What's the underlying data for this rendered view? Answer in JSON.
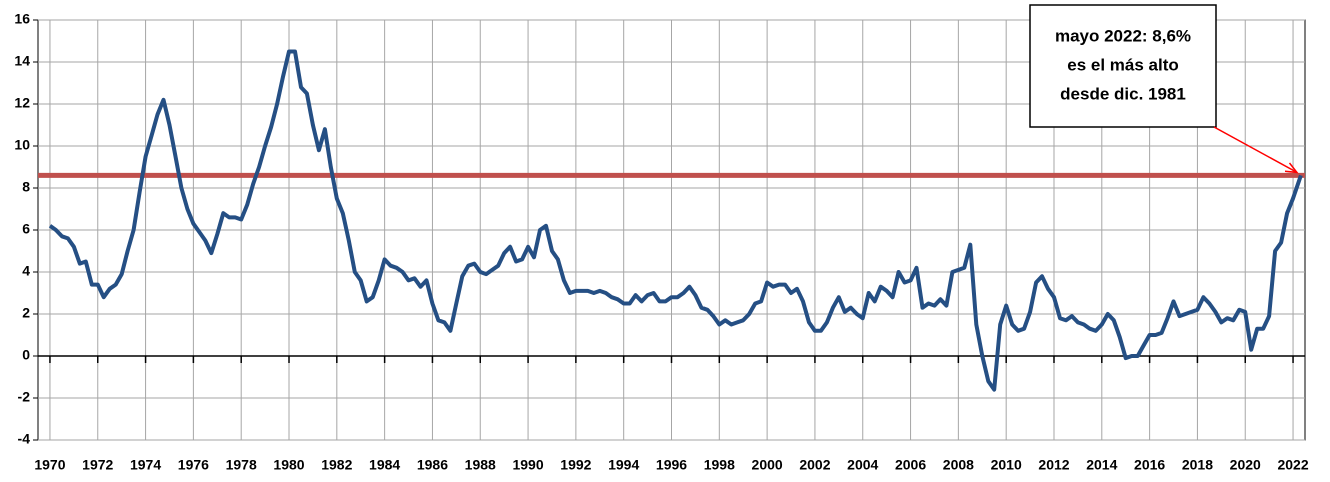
{
  "chart_data": {
    "type": "line",
    "series": [
      {
        "color": "#254f84",
        "x": [
          1970,
          1970.25,
          1970.5,
          1970.75,
          1971,
          1971.25,
          1971.5,
          1971.75,
          1972,
          1972.25,
          1972.5,
          1972.75,
          1973,
          1973.25,
          1973.5,
          1973.75,
          1974,
          1974.25,
          1974.5,
          1974.75,
          1975,
          1975.25,
          1975.5,
          1975.75,
          1976,
          1976.25,
          1976.5,
          1976.75,
          1977,
          1977.25,
          1977.5,
          1977.75,
          1978,
          1978.25,
          1978.5,
          1978.75,
          1979,
          1979.25,
          1979.5,
          1979.75,
          1980,
          1980.25,
          1980.5,
          1980.75,
          1981,
          1981.25,
          1981.5,
          1981.75,
          1982,
          1982.25,
          1982.5,
          1982.75,
          1983,
          1983.25,
          1983.5,
          1983.75,
          1984,
          1984.25,
          1984.5,
          1984.75,
          1985,
          1985.25,
          1985.5,
          1985.75,
          1986,
          1986.25,
          1986.5,
          1986.75,
          1987,
          1987.25,
          1987.5,
          1987.75,
          1988,
          1988.25,
          1988.5,
          1988.75,
          1989,
          1989.25,
          1989.5,
          1989.75,
          1990,
          1990.25,
          1990.5,
          1990.75,
          1991,
          1991.25,
          1991.5,
          1991.75,
          1992,
          1992.25,
          1992.5,
          1992.75,
          1993,
          1993.25,
          1993.5,
          1993.75,
          1994,
          1994.25,
          1994.5,
          1994.75,
          1995,
          1995.25,
          1995.5,
          1995.75,
          1996,
          1996.25,
          1996.5,
          1996.75,
          1997,
          1997.25,
          1997.5,
          1997.75,
          1998,
          1998.25,
          1998.5,
          1998.75,
          1999,
          1999.25,
          1999.5,
          1999.75,
          2000,
          2000.25,
          2000.5,
          2000.75,
          2001,
          2001.25,
          2001.5,
          2001.75,
          2002,
          2002.25,
          2002.5,
          2002.75,
          2003,
          2003.25,
          2003.5,
          2003.75,
          2004,
          2004.25,
          2004.5,
          2004.75,
          2005,
          2005.25,
          2005.5,
          2005.75,
          2006,
          2006.25,
          2006.5,
          2006.75,
          2007,
          2007.25,
          2007.5,
          2007.75,
          2008,
          2008.25,
          2008.5,
          2008.75,
          2009,
          2009.25,
          2009.5,
          2009.75,
          2010,
          2010.25,
          2010.5,
          2010.75,
          2011,
          2011.25,
          2011.5,
          2011.75,
          2012,
          2012.25,
          2012.5,
          2012.75,
          2013,
          2013.25,
          2013.5,
          2013.75,
          2014,
          2014.25,
          2014.5,
          2014.75,
          2015,
          2015.25,
          2015.5,
          2015.75,
          2016,
          2016.25,
          2016.5,
          2016.75,
          2017,
          2017.25,
          2017.5,
          2017.75,
          2018,
          2018.25,
          2018.5,
          2018.75,
          2019,
          2019.25,
          2019.5,
          2019.75,
          2020,
          2020.25,
          2020.5,
          2020.75,
          2021,
          2021.25,
          2021.5,
          2021.75,
          2022,
          2022.33
        ],
        "values": [
          6.2,
          6.0,
          5.7,
          5.6,
          5.2,
          4.4,
          4.5,
          3.4,
          3.4,
          2.8,
          3.2,
          3.4,
          3.9,
          5.0,
          6.0,
          7.8,
          9.5,
          10.5,
          11.5,
          12.2,
          11.0,
          9.5,
          8.0,
          7.0,
          6.3,
          5.9,
          5.5,
          4.9,
          5.8,
          6.8,
          6.6,
          6.6,
          6.5,
          7.2,
          8.2,
          9.0,
          10.0,
          10.9,
          12.0,
          13.3,
          14.5,
          14.5,
          12.8,
          12.5,
          11.0,
          9.8,
          10.8,
          9.0,
          7.5,
          6.8,
          5.5,
          4.0,
          3.6,
          2.6,
          2.8,
          3.6,
          4.6,
          4.3,
          4.2,
          4.0,
          3.6,
          3.7,
          3.3,
          3.6,
          2.5,
          1.7,
          1.6,
          1.2,
          2.5,
          3.8,
          4.3,
          4.4,
          4.0,
          3.9,
          4.1,
          4.3,
          4.9,
          5.2,
          4.5,
          4.6,
          5.2,
          4.7,
          6.0,
          6.2,
          5.0,
          4.6,
          3.6,
          3.0,
          3.1,
          3.1,
          3.1,
          3.0,
          3.1,
          3.0,
          2.8,
          2.7,
          2.5,
          2.5,
          2.9,
          2.6,
          2.9,
          3.0,
          2.6,
          2.6,
          2.8,
          2.8,
          3.0,
          3.3,
          2.9,
          2.3,
          2.2,
          1.9,
          1.5,
          1.7,
          1.5,
          1.6,
          1.7,
          2.0,
          2.5,
          2.6,
          3.5,
          3.3,
          3.4,
          3.4,
          3.0,
          3.2,
          2.6,
          1.6,
          1.2,
          1.2,
          1.6,
          2.3,
          2.8,
          2.1,
          2.3,
          2.0,
          1.8,
          3.0,
          2.6,
          3.3,
          3.1,
          2.8,
          4.0,
          3.5,
          3.6,
          4.2,
          2.3,
          2.5,
          2.4,
          2.7,
          2.4,
          4.0,
          4.1,
          4.2,
          5.3,
          1.5,
          0.0,
          -1.2,
          -1.6,
          1.5,
          2.4,
          1.5,
          1.2,
          1.3,
          2.1,
          3.5,
          3.8,
          3.2,
          2.8,
          1.8,
          1.7,
          1.9,
          1.6,
          1.5,
          1.3,
          1.2,
          1.5,
          2.0,
          1.7,
          0.9,
          -0.1,
          0.0,
          0.0,
          0.5,
          1.0,
          1.0,
          1.1,
          1.8,
          2.6,
          1.9,
          2.0,
          2.1,
          2.2,
          2.8,
          2.5,
          2.1,
          1.6,
          1.8,
          1.7,
          2.2,
          2.1,
          0.3,
          1.3,
          1.3,
          1.9,
          5.0,
          5.4,
          6.8,
          7.5,
          8.6
        ]
      }
    ],
    "xlim": [
      1969.5,
      2022.5
    ],
    "xticks": [
      1970,
      1972,
      1974,
      1976,
      1978,
      1980,
      1982,
      1984,
      1986,
      1988,
      1990,
      1992,
      1994,
      1996,
      1998,
      2000,
      2002,
      2004,
      2006,
      2008,
      2010,
      2012,
      2014,
      2016,
      2018,
      2020,
      2022
    ],
    "ylim": [
      -4,
      16
    ],
    "yticks": [
      -4,
      -2,
      0,
      2,
      4,
      6,
      8,
      10,
      12,
      14,
      16
    ],
    "grid": true,
    "hline": {
      "value": 8.6,
      "color": "#c0504d"
    },
    "annotation": {
      "lines": [
        "mayo 2022: 8,6%",
        "es el más alto",
        "desde dic. 1981"
      ],
      "arrow_color": "#ff0000"
    }
  }
}
